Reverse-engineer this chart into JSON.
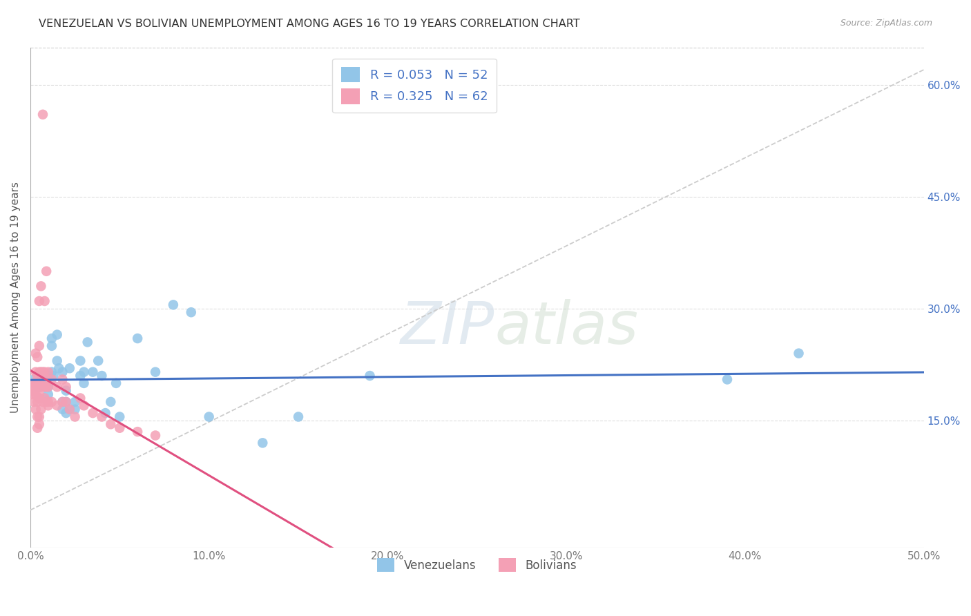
{
  "title": "VENEZUELAN VS BOLIVIAN UNEMPLOYMENT AMONG AGES 16 TO 19 YEARS CORRELATION CHART",
  "source": "Source: ZipAtlas.com",
  "ylabel": "Unemployment Among Ages 16 to 19 years",
  "xlim": [
    0.0,
    0.5
  ],
  "ylim": [
    -0.02,
    0.65
  ],
  "x_ticks": [
    0.0,
    0.1,
    0.2,
    0.3,
    0.4,
    0.5
  ],
  "x_tick_labels": [
    "0.0%",
    "10.0%",
    "20.0%",
    "30.0%",
    "40.0%",
    "50.0%"
  ],
  "y_ticks": [
    0.15,
    0.3,
    0.45,
    0.6
  ],
  "y_tick_labels": [
    "15.0%",
    "30.0%",
    "45.0%",
    "60.0%"
  ],
  "venezuelan_color": "#92C5E8",
  "bolivian_color": "#F4A0B5",
  "venezuelan_R": 0.053,
  "venezuelan_N": 52,
  "bolivian_R": 0.325,
  "bolivian_N": 62,
  "diagonal_color": "#cccccc",
  "venezuelan_line_color": "#4472C4",
  "bolivian_line_color": "#E05080",
  "watermark_zip": "ZIP",
  "watermark_atlas": "atlas",
  "background_color": "#ffffff",
  "venezuelan_scatter": [
    [
      0.002,
      0.205
    ],
    [
      0.003,
      0.2
    ],
    [
      0.004,
      0.195
    ],
    [
      0.005,
      0.21
    ],
    [
      0.005,
      0.195
    ],
    [
      0.006,
      0.2
    ],
    [
      0.007,
      0.205
    ],
    [
      0.008,
      0.21
    ],
    [
      0.008,
      0.195
    ],
    [
      0.009,
      0.2
    ],
    [
      0.01,
      0.21
    ],
    [
      0.01,
      0.195
    ],
    [
      0.01,
      0.185
    ],
    [
      0.012,
      0.26
    ],
    [
      0.012,
      0.25
    ],
    [
      0.012,
      0.215
    ],
    [
      0.013,
      0.21
    ],
    [
      0.015,
      0.265
    ],
    [
      0.015,
      0.23
    ],
    [
      0.016,
      0.22
    ],
    [
      0.018,
      0.215
    ],
    [
      0.018,
      0.175
    ],
    [
      0.018,
      0.165
    ],
    [
      0.02,
      0.175
    ],
    [
      0.02,
      0.16
    ],
    [
      0.02,
      0.19
    ],
    [
      0.022,
      0.165
    ],
    [
      0.022,
      0.22
    ],
    [
      0.025,
      0.165
    ],
    [
      0.025,
      0.175
    ],
    [
      0.028,
      0.23
    ],
    [
      0.028,
      0.21
    ],
    [
      0.03,
      0.2
    ],
    [
      0.03,
      0.215
    ],
    [
      0.032,
      0.255
    ],
    [
      0.035,
      0.215
    ],
    [
      0.038,
      0.23
    ],
    [
      0.04,
      0.21
    ],
    [
      0.042,
      0.16
    ],
    [
      0.045,
      0.175
    ],
    [
      0.048,
      0.2
    ],
    [
      0.05,
      0.155
    ],
    [
      0.06,
      0.26
    ],
    [
      0.07,
      0.215
    ],
    [
      0.08,
      0.305
    ],
    [
      0.09,
      0.295
    ],
    [
      0.1,
      0.155
    ],
    [
      0.13,
      0.12
    ],
    [
      0.15,
      0.155
    ],
    [
      0.19,
      0.21
    ],
    [
      0.39,
      0.205
    ],
    [
      0.43,
      0.24
    ]
  ],
  "bolivian_scatter": [
    [
      0.001,
      0.195
    ],
    [
      0.001,
      0.185
    ],
    [
      0.002,
      0.2
    ],
    [
      0.002,
      0.19
    ],
    [
      0.002,
      0.175
    ],
    [
      0.003,
      0.24
    ],
    [
      0.003,
      0.215
    ],
    [
      0.003,
      0.2
    ],
    [
      0.003,
      0.185
    ],
    [
      0.003,
      0.165
    ],
    [
      0.004,
      0.235
    ],
    [
      0.004,
      0.21
    ],
    [
      0.004,
      0.195
    ],
    [
      0.004,
      0.175
    ],
    [
      0.004,
      0.155
    ],
    [
      0.004,
      0.14
    ],
    [
      0.005,
      0.31
    ],
    [
      0.005,
      0.25
    ],
    [
      0.005,
      0.215
    ],
    [
      0.005,
      0.205
    ],
    [
      0.005,
      0.2
    ],
    [
      0.005,
      0.185
    ],
    [
      0.005,
      0.18
    ],
    [
      0.005,
      0.155
    ],
    [
      0.005,
      0.145
    ],
    [
      0.006,
      0.33
    ],
    [
      0.006,
      0.215
    ],
    [
      0.006,
      0.195
    ],
    [
      0.006,
      0.165
    ],
    [
      0.007,
      0.215
    ],
    [
      0.007,
      0.175
    ],
    [
      0.007,
      0.56
    ],
    [
      0.008,
      0.31
    ],
    [
      0.008,
      0.215
    ],
    [
      0.008,
      0.195
    ],
    [
      0.008,
      0.18
    ],
    [
      0.009,
      0.35
    ],
    [
      0.009,
      0.205
    ],
    [
      0.009,
      0.195
    ],
    [
      0.009,
      0.175
    ],
    [
      0.01,
      0.215
    ],
    [
      0.01,
      0.175
    ],
    [
      0.01,
      0.195
    ],
    [
      0.01,
      0.17
    ],
    [
      0.012,
      0.205
    ],
    [
      0.012,
      0.175
    ],
    [
      0.015,
      0.195
    ],
    [
      0.015,
      0.17
    ],
    [
      0.018,
      0.205
    ],
    [
      0.018,
      0.175
    ],
    [
      0.02,
      0.195
    ],
    [
      0.02,
      0.175
    ],
    [
      0.022,
      0.165
    ],
    [
      0.025,
      0.155
    ],
    [
      0.028,
      0.18
    ],
    [
      0.03,
      0.17
    ],
    [
      0.035,
      0.16
    ],
    [
      0.04,
      0.155
    ],
    [
      0.045,
      0.145
    ],
    [
      0.05,
      0.14
    ],
    [
      0.06,
      0.135
    ],
    [
      0.07,
      0.13
    ]
  ]
}
